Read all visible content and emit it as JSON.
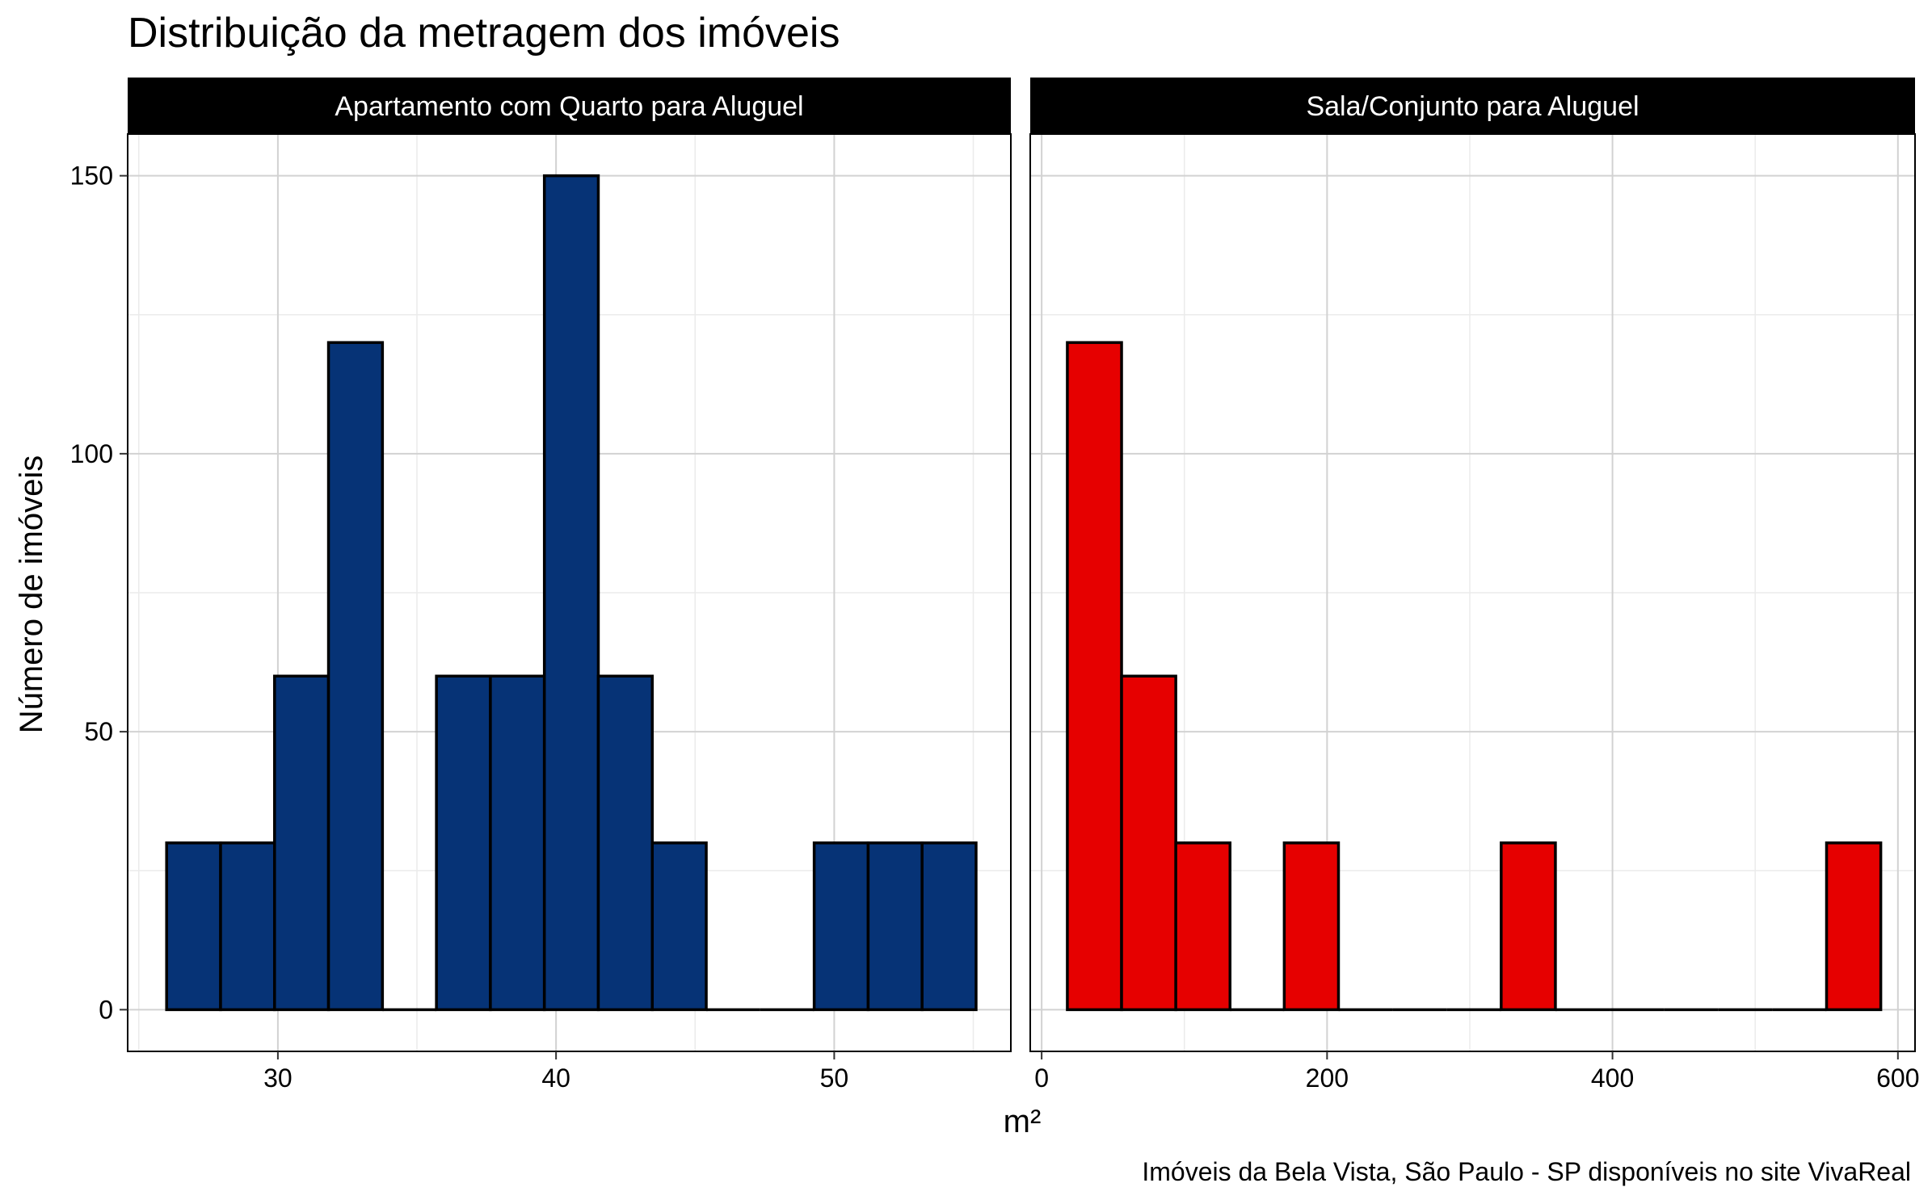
{
  "chart_data": {
    "title": "Distribuição da metragem dos imóveis",
    "xlabel": "m²",
    "ylabel": "Número de imóveis",
    "caption": "Imóveis da Bela Vista, São Paulo - SP disponíveis no site VivaReal",
    "ylim": [
      -7.5,
      157.5
    ],
    "y_ticks": [
      0,
      50,
      100,
      150
    ],
    "grid": true,
    "legend": "none",
    "panels": [
      {
        "type": "bar",
        "strip_label": "Apartamento com  Quarto para Aluguel",
        "fill_color": "#063376",
        "edge_color": "#000000",
        "xlim": [
          24.6,
          56.35
        ],
        "x_ticks": [
          30,
          40,
          50
        ],
        "bins": [
          {
            "x0": 26.0,
            "x1": 27.94,
            "count": 30
          },
          {
            "x0": 27.94,
            "x1": 29.88,
            "count": 30
          },
          {
            "x0": 29.88,
            "x1": 31.82,
            "count": 60
          },
          {
            "x0": 31.82,
            "x1": 33.76,
            "count": 120
          },
          {
            "x0": 33.76,
            "x1": 35.7,
            "count": 0
          },
          {
            "x0": 35.7,
            "x1": 37.64,
            "count": 60
          },
          {
            "x0": 37.64,
            "x1": 39.58,
            "count": 60
          },
          {
            "x0": 39.58,
            "x1": 41.52,
            "count": 150
          },
          {
            "x0": 41.52,
            "x1": 43.46,
            "count": 60
          },
          {
            "x0": 43.46,
            "x1": 45.4,
            "count": 30
          },
          {
            "x0": 45.4,
            "x1": 47.34,
            "count": 0
          },
          {
            "x0": 47.34,
            "x1": 49.28,
            "count": 0
          },
          {
            "x0": 49.28,
            "x1": 51.22,
            "count": 30
          },
          {
            "x0": 51.22,
            "x1": 53.16,
            "count": 30
          },
          {
            "x0": 53.16,
            "x1": 55.1,
            "count": 30
          }
        ]
      },
      {
        "type": "bar",
        "strip_label": "Sala/Conjunto    para Aluguel",
        "fill_color": "#E60000",
        "edge_color": "#000000",
        "xlim": [
          -8,
          612
        ],
        "x_ticks": [
          0,
          200,
          400,
          600
        ],
        "bins": [
          {
            "x0": 18,
            "x1": 56,
            "count": 120
          },
          {
            "x0": 56,
            "x1": 94,
            "count": 60
          },
          {
            "x0": 94,
            "x1": 132,
            "count": 30
          },
          {
            "x0": 132,
            "x1": 170,
            "count": 0
          },
          {
            "x0": 170,
            "x1": 208,
            "count": 30
          },
          {
            "x0": 208,
            "x1": 246,
            "count": 0
          },
          {
            "x0": 246,
            "x1": 284,
            "count": 0
          },
          {
            "x0": 284,
            "x1": 322,
            "count": 0
          },
          {
            "x0": 322,
            "x1": 360,
            "count": 30
          },
          {
            "x0": 360,
            "x1": 398,
            "count": 0
          },
          {
            "x0": 398,
            "x1": 436,
            "count": 0
          },
          {
            "x0": 436,
            "x1": 474,
            "count": 0
          },
          {
            "x0": 474,
            "x1": 512,
            "count": 0
          },
          {
            "x0": 512,
            "x1": 550,
            "count": 0
          },
          {
            "x0": 550,
            "x1": 588,
            "count": 30
          }
        ]
      }
    ]
  }
}
